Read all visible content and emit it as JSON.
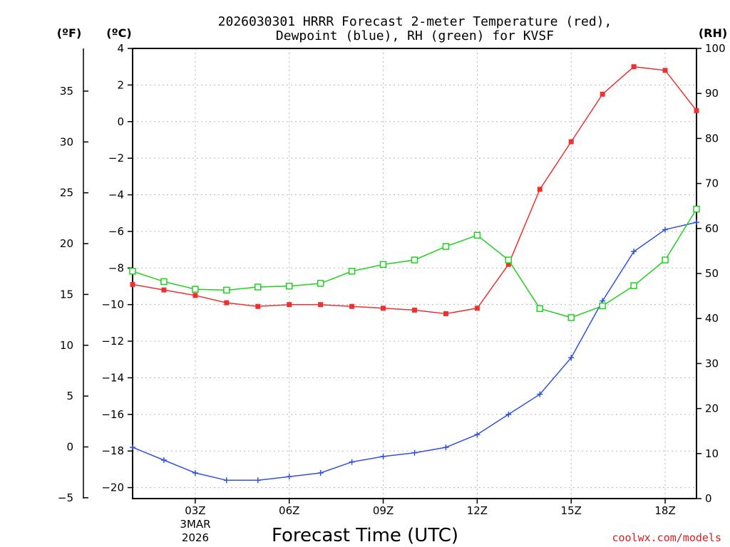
{
  "chart_data": {
    "type": "line",
    "title_line1": "2026030301 HRRR Forecast 2-meter Temperature (red),",
    "title_line2": "Dewpoint (blue), RH (green) for KVSF",
    "xlabel": "Forecast Time (UTC)",
    "credit": "coolwx.com/models",
    "units": {
      "f": "(ºF)",
      "c": "(ºC)",
      "rh": "(RH)"
    },
    "xlim": [
      1,
      19
    ],
    "ylim_c": [
      -20.6,
      4
    ],
    "ylim_f": [
      -5.08,
      39.2
    ],
    "ylim_rh": [
      0,
      100
    ],
    "x_ticks": [
      {
        "x": 3,
        "label": "03Z"
      },
      {
        "x": 6,
        "label": "06Z"
      },
      {
        "x": 9,
        "label": "09Z"
      },
      {
        "x": 12,
        "label": "12Z"
      },
      {
        "x": 15,
        "label": "15Z"
      },
      {
        "x": 18,
        "label": "18Z"
      }
    ],
    "date_label": [
      "3MAR",
      "2026"
    ],
    "yticks_c": [
      "4",
      "2",
      "0",
      "−2",
      "−4",
      "−6",
      "−8",
      "−10",
      "−12",
      "−14",
      "−16",
      "−18",
      "−20"
    ],
    "yticks_c_values": [
      4,
      2,
      0,
      -2,
      -4,
      -6,
      -8,
      -10,
      -12,
      -14,
      -16,
      -18,
      -20
    ],
    "yticks_f": [
      "35",
      "30",
      "25",
      "20",
      "15",
      "10",
      "5",
      "0",
      "−5"
    ],
    "yticks_f_values": [
      35,
      30,
      25,
      20,
      15,
      10,
      5,
      0,
      -5
    ],
    "yticks_rh": [
      "100",
      "90",
      "80",
      "70",
      "60",
      "50",
      "40",
      "30",
      "20",
      "10",
      "0"
    ],
    "yticks_rh_values": [
      100,
      90,
      80,
      70,
      60,
      50,
      40,
      30,
      20,
      10,
      0
    ],
    "x": [
      1,
      2,
      3,
      4,
      5,
      6,
      7,
      8,
      9,
      10,
      11,
      12,
      13,
      14,
      15,
      16,
      17,
      18,
      19
    ],
    "series": [
      {
        "name": "Temperature",
        "axis": "c",
        "color": "#ee3030",
        "marker": "filled-square",
        "values": [
          -8.9,
          -9.2,
          -9.5,
          -9.9,
          -10.1,
          -10.0,
          -10.0,
          -10.1,
          -10.2,
          -10.3,
          -10.5,
          -10.2,
          -7.8,
          -3.7,
          -1.1,
          1.5,
          3.0,
          2.8,
          0.6
        ]
      },
      {
        "name": "Dewpoint",
        "axis": "c",
        "color": "#3050e0",
        "marker": "plus",
        "values": [
          -17.8,
          -18.5,
          -19.2,
          -19.6,
          -19.6,
          -19.4,
          -19.2,
          -18.6,
          -18.3,
          -18.1,
          -17.8,
          -17.1,
          -16.0,
          -14.9,
          -12.9,
          -9.8,
          -7.1,
          -5.9,
          -5.5
        ]
      },
      {
        "name": "RH",
        "axis": "rh",
        "color": "#20d020",
        "marker": "open-square",
        "values": [
          50.5,
          48.2,
          46.5,
          46.3,
          47.0,
          47.2,
          47.8,
          50.5,
          52.0,
          53.0,
          56.0,
          58.5,
          53.0,
          42.2,
          40.2,
          42.8,
          47.3,
          53.0,
          64.3
        ]
      }
    ]
  }
}
